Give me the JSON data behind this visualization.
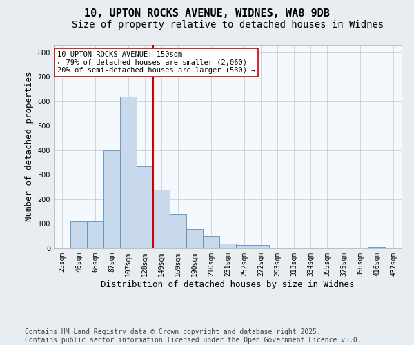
{
  "title_line1": "10, UPTON ROCKS AVENUE, WIDNES, WA8 9DB",
  "title_line2": "Size of property relative to detached houses in Widnes",
  "xlabel": "Distribution of detached houses by size in Widnes",
  "ylabel": "Number of detached properties",
  "categories": [
    "25sqm",
    "46sqm",
    "66sqm",
    "87sqm",
    "107sqm",
    "128sqm",
    "149sqm",
    "169sqm",
    "190sqm",
    "210sqm",
    "231sqm",
    "252sqm",
    "272sqm",
    "293sqm",
    "313sqm",
    "334sqm",
    "355sqm",
    "375sqm",
    "396sqm",
    "416sqm",
    "437sqm"
  ],
  "values": [
    3,
    110,
    110,
    400,
    620,
    335,
    240,
    140,
    78,
    50,
    20,
    13,
    13,
    3,
    0,
    0,
    0,
    0,
    0,
    5,
    0
  ],
  "bar_color": "#c8d9ec",
  "bar_edge_color": "#5b8fc0",
  "vline_color": "#cc0000",
  "vline_index": 6,
  "annotation_text": "10 UPTON ROCKS AVENUE: 150sqm\n← 79% of detached houses are smaller (2,060)\n20% of semi-detached houses are larger (530) →",
  "annotation_box_edgecolor": "#cc0000",
  "ylim": [
    0,
    830
  ],
  "yticks": [
    0,
    100,
    200,
    300,
    400,
    500,
    600,
    700,
    800
  ],
  "background_color": "#e8edf2",
  "plot_bg_color": "#f5f8fc",
  "grid_color": "#c0c8d4",
  "title_fontsize": 11,
  "subtitle_fontsize": 10,
  "label_fontsize": 9,
  "tick_fontsize": 7,
  "annot_fontsize": 7.5,
  "footer_fontsize": 7,
  "footer_line1": "Contains HM Land Registry data © Crown copyright and database right 2025.",
  "footer_line2": "Contains public sector information licensed under the Open Government Licence v3.0."
}
